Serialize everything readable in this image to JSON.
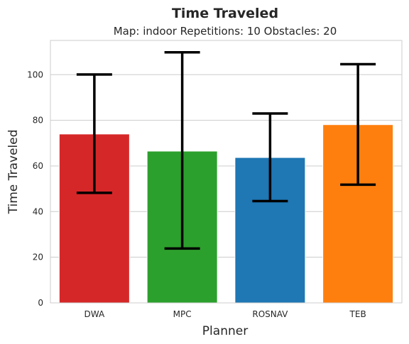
{
  "chart_data": {
    "type": "bar",
    "title": "Time Traveled",
    "subtitle": "Map: indoor Repetitions: 10 Obstacles: 20",
    "xlabel": "Planner",
    "ylabel": "Time Traveled",
    "categories": [
      "DWA",
      "MPC",
      "ROSNAV",
      "TEB"
    ],
    "values": [
      74.0,
      66.5,
      63.7,
      78.1
    ],
    "error_low": [
      48.2,
      23.8,
      44.6,
      51.8
    ],
    "error_high": [
      100.1,
      109.8,
      83.0,
      104.6
    ],
    "colors": [
      "#d62728",
      "#2ca02c",
      "#1f77b4",
      "#ff7f0e"
    ],
    "ylim": [
      0,
      115
    ],
    "yticks": [
      "0",
      "20",
      "40",
      "60",
      "80",
      "100"
    ],
    "grid": true
  }
}
